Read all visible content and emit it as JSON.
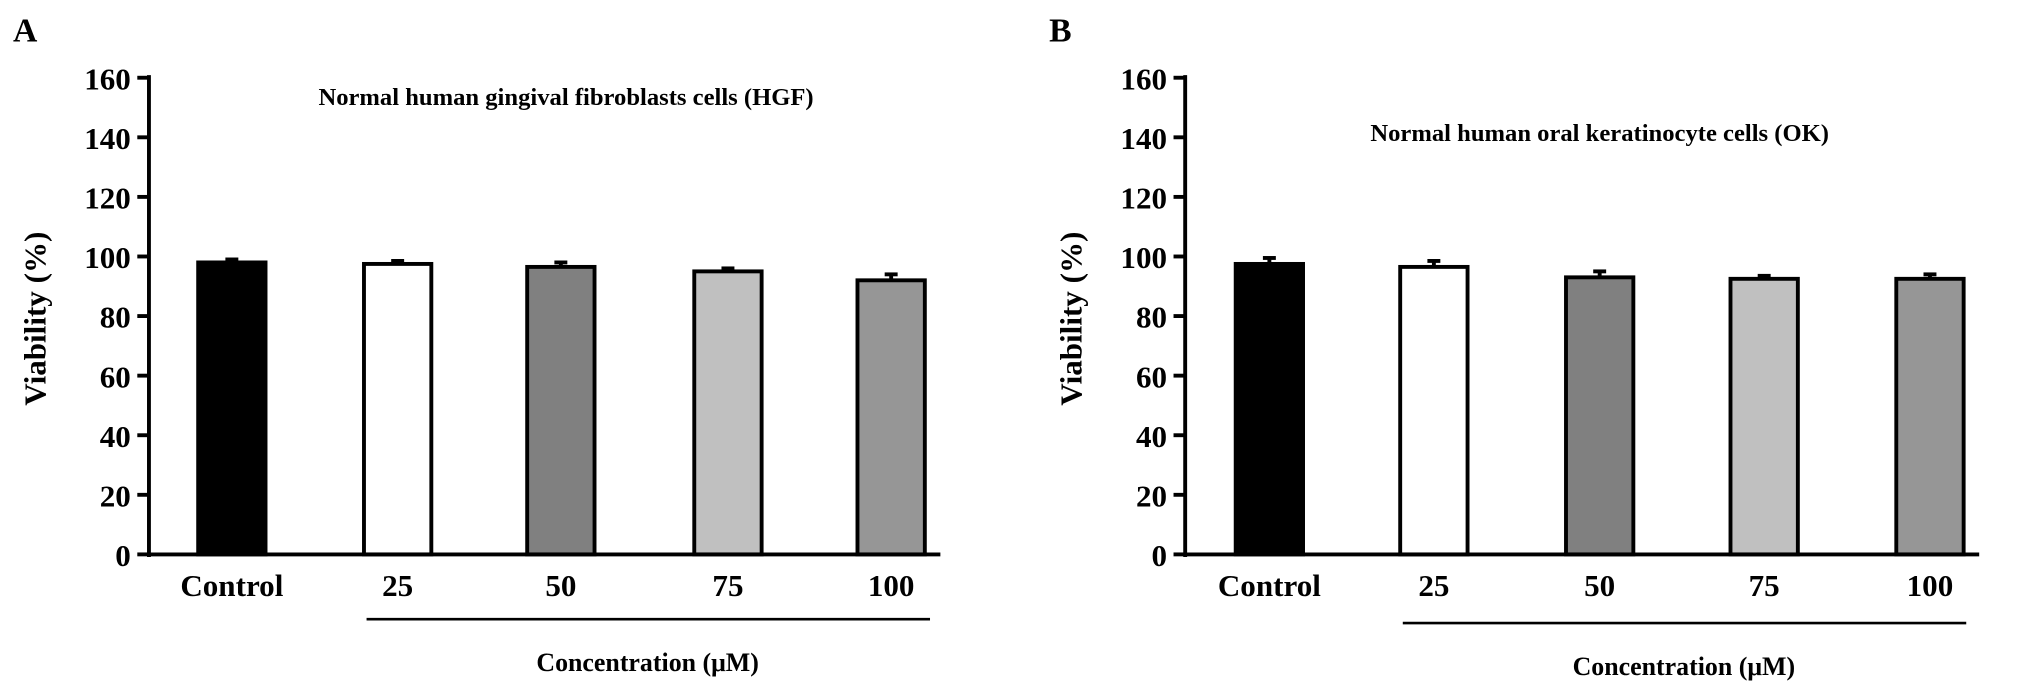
{
  "chart_data": [
    {
      "type": "bar",
      "panel_label": "A",
      "title": "Normal human gingival fibroblasts cells (HGF)",
      "ylabel": "Viability (%)",
      "xlabel": "Concentration (μM)",
      "categories": [
        "Control",
        "25",
        "50",
        "75",
        "100"
      ],
      "values": [
        98,
        97.5,
        96.5,
        95,
        92
      ],
      "errors": [
        1,
        1,
        1.5,
        1,
        2
      ],
      "colors": [
        "#000000",
        "#ffffff",
        "#808080",
        "#c0c0c0",
        "#969696"
      ],
      "ylim": [
        0,
        160
      ],
      "yticks": [
        0,
        20,
        40,
        60,
        80,
        100,
        120,
        140,
        160
      ],
      "grid": false
    },
    {
      "type": "bar",
      "panel_label": "B",
      "title": "Normal human oral keratinocyte cells (OK)",
      "ylabel": "Viability (%)",
      "xlabel": "Concentration (μM)",
      "categories": [
        "Control",
        "25",
        "50",
        "75",
        "100"
      ],
      "values": [
        97.5,
        96.5,
        93,
        92.5,
        92.5
      ],
      "errors": [
        2,
        2,
        2,
        1,
        1.5
      ],
      "colors": [
        "#000000",
        "#ffffff",
        "#808080",
        "#c0c0c0",
        "#969696"
      ],
      "ylim": [
        0,
        160
      ],
      "yticks": [
        0,
        20,
        40,
        60,
        80,
        100,
        120,
        140,
        160
      ],
      "grid": false
    }
  ]
}
